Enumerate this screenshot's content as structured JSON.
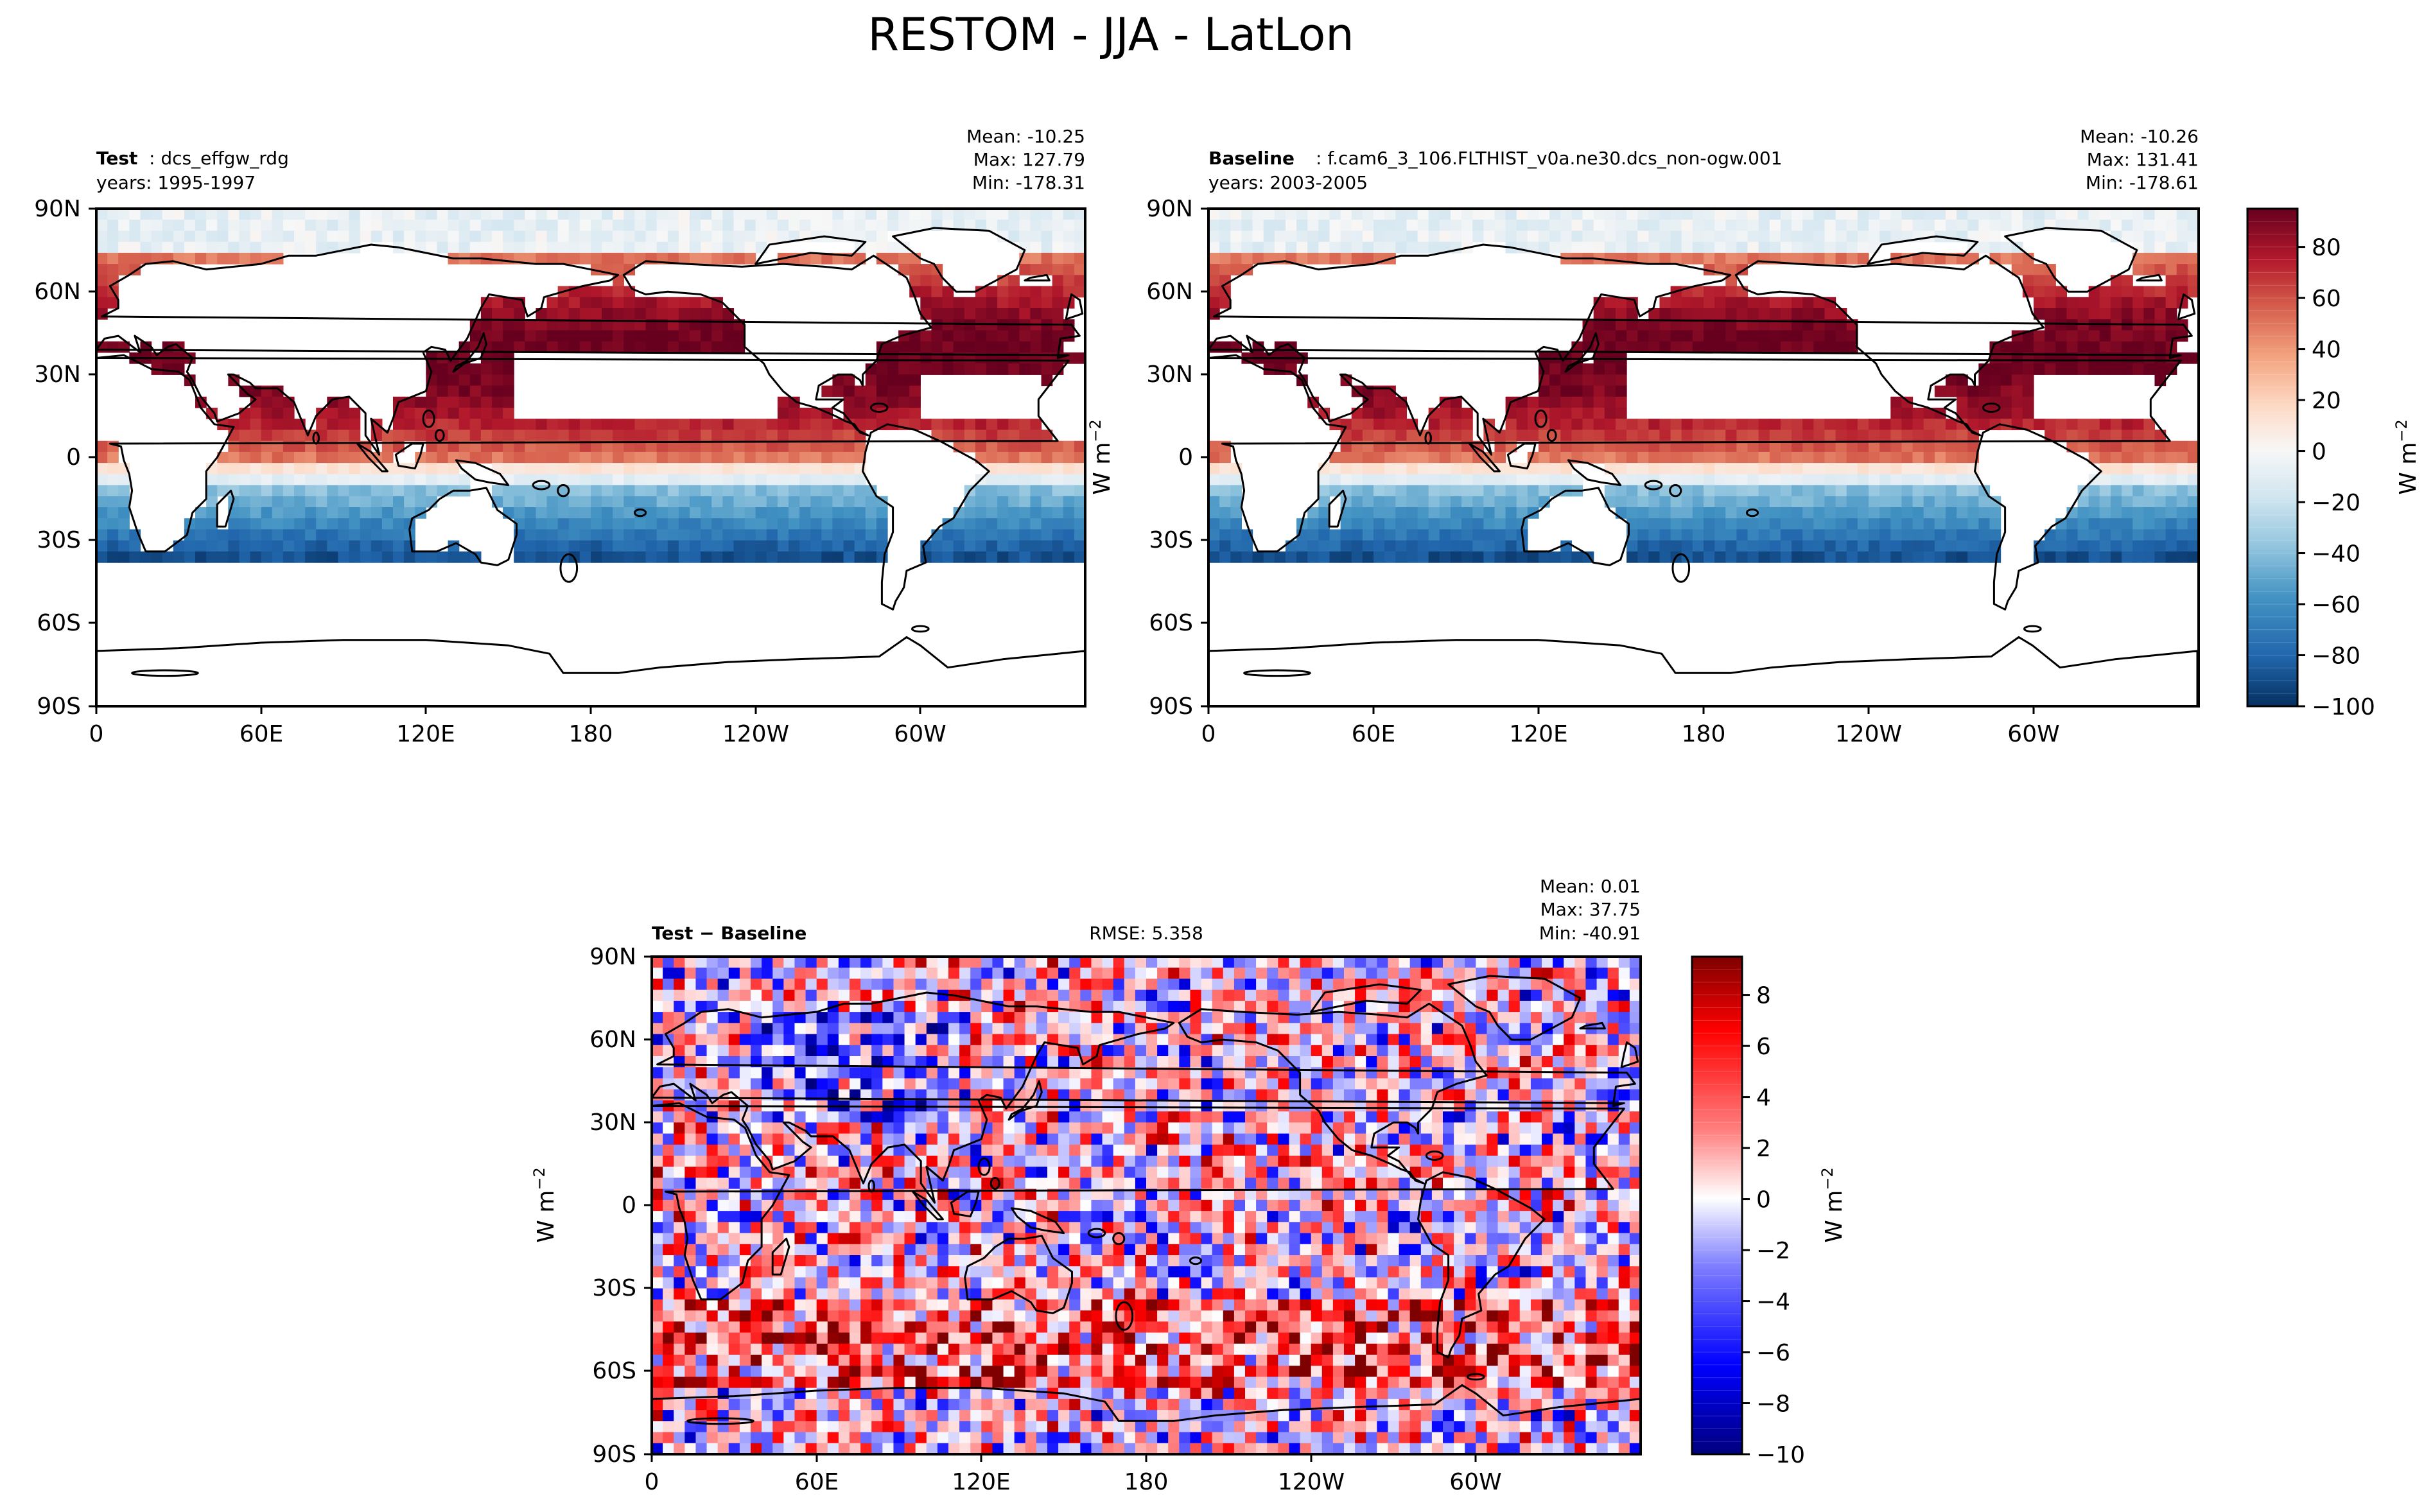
{
  "figure": {
    "title": "RESTOM - JJA - LatLon"
  },
  "colors": {
    "seq": [
      "#053061",
      "#2166ac",
      "#4393c3",
      "#92c5de",
      "#d1e5f0",
      "#f7f7f7",
      "#fddbc7",
      "#f4a582",
      "#d6604d",
      "#b2182b",
      "#67001f"
    ],
    "diff": [
      "#00007f",
      "#0000ff",
      "#7f7fff",
      "#ffffff",
      "#ff7f7f",
      "#ff0000",
      "#7f0000"
    ],
    "land": "#ffffff",
    "coast": "#000000"
  },
  "chart_data": [
    {
      "type": "heatmap",
      "panel": "test",
      "title_bold": "Test",
      "title_rest": ": dcs_effgw_rdg",
      "years": "years: 1995-1997",
      "stats": [
        "Mean: -10.25",
        "Max: 127.79",
        "Min: -178.31"
      ],
      "xticks": [
        "0",
        "60E",
        "120E",
        "180",
        "120W",
        "60W"
      ],
      "yticks": [
        "90N",
        "60N",
        "30N",
        "0",
        "30S",
        "60S",
        "90S"
      ],
      "xlim": [
        0,
        360
      ],
      "ylim": [
        -90,
        90
      ],
      "field": "restom",
      "mean": -10.25,
      "max": 127.79,
      "min": -178.31
    },
    {
      "type": "heatmap",
      "panel": "baseline",
      "title_bold": "Baseline",
      "title_rest": ": f.cam6_3_106.FLTHIST_v0a.ne30.dcs_non-ogw.001",
      "years": "years: 2003-2005",
      "stats": [
        "Mean: -10.26",
        "Max: 131.41",
        "Min: -178.61"
      ],
      "xticks": [
        "0",
        "60E",
        "120E",
        "180",
        "120W",
        "60W"
      ],
      "yticks": [
        "90N",
        "60N",
        "30N",
        "0",
        "30S",
        "60S",
        "90S"
      ],
      "xlim": [
        0,
        360
      ],
      "ylim": [
        -90,
        90
      ],
      "ylabel": "W m",
      "ylabel_sup": "−2",
      "field": "restom",
      "mean": -10.26,
      "max": 131.41,
      "min": -178.61
    },
    {
      "type": "heatmap",
      "panel": "diff",
      "title_bold": "Test − Baseline",
      "rmse": "RMSE: 5.358",
      "stats": [
        "Mean:  0.01",
        "Max: 37.75",
        "Min: -40.91"
      ],
      "xticks": [
        "0",
        "60E",
        "120E",
        "180",
        "120W",
        "60W"
      ],
      "yticks": [
        "90N",
        "60N",
        "30N",
        "0",
        "30S",
        "60S",
        "90S"
      ],
      "xlim": [
        0,
        360
      ],
      "ylim": [
        -90,
        90
      ],
      "ylabel": "W m",
      "ylabel_sup": "−2",
      "field": "diff",
      "mean": 0.01,
      "max": 37.75,
      "min": -40.91
    }
  ],
  "colorbars": {
    "top": {
      "ticks": [
        "80",
        "60",
        "40",
        "20",
        "0",
        "−20",
        "−40",
        "−60",
        "−80",
        "−100"
      ],
      "values": [
        80,
        60,
        40,
        20,
        0,
        -20,
        -40,
        -60,
        -80,
        -100
      ],
      "range": [
        -100,
        95
      ],
      "label": "W m",
      "label_sup": "−2"
    },
    "bottom": {
      "ticks": [
        "8",
        "6",
        "4",
        "2",
        "0",
        "−2",
        "−4",
        "−6",
        "−8",
        "−10"
      ],
      "values": [
        8,
        6,
        4,
        2,
        0,
        -2,
        -4,
        -6,
        -8,
        -10
      ],
      "range": [
        -10,
        9.5
      ],
      "label": "W m",
      "label_sup": "−2"
    }
  }
}
